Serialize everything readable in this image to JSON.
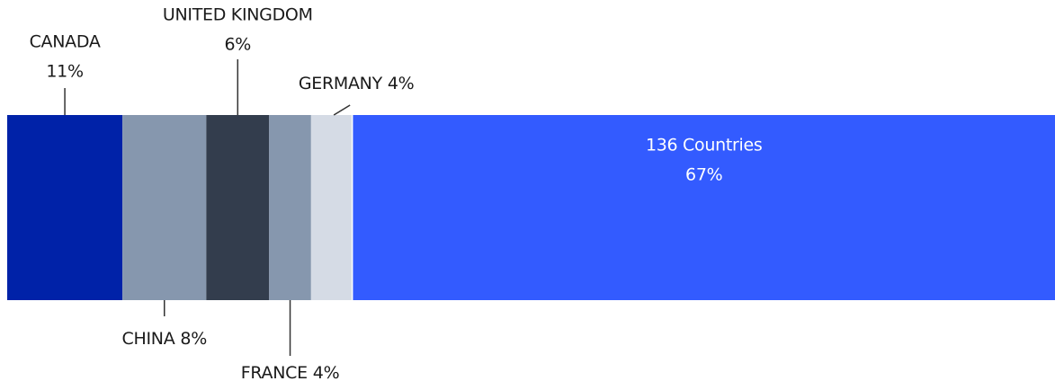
{
  "chart_data": {
    "type": "stacked-bar",
    "categories": [
      "CANADA",
      "CHINA",
      "UNITED KINGDOM",
      "FRANCE",
      "GERMANY",
      "136 Countries"
    ],
    "values": [
      11,
      8,
      6,
      4,
      4,
      67
    ],
    "value_labels": [
      "11%",
      "8%",
      "6%",
      "4%",
      "4%",
      "67%"
    ],
    "colors": [
      "#0022a8",
      "#8697ae",
      "#333d4d",
      "#8697ae",
      "#d5dbe5",
      "#335bff"
    ]
  }
}
